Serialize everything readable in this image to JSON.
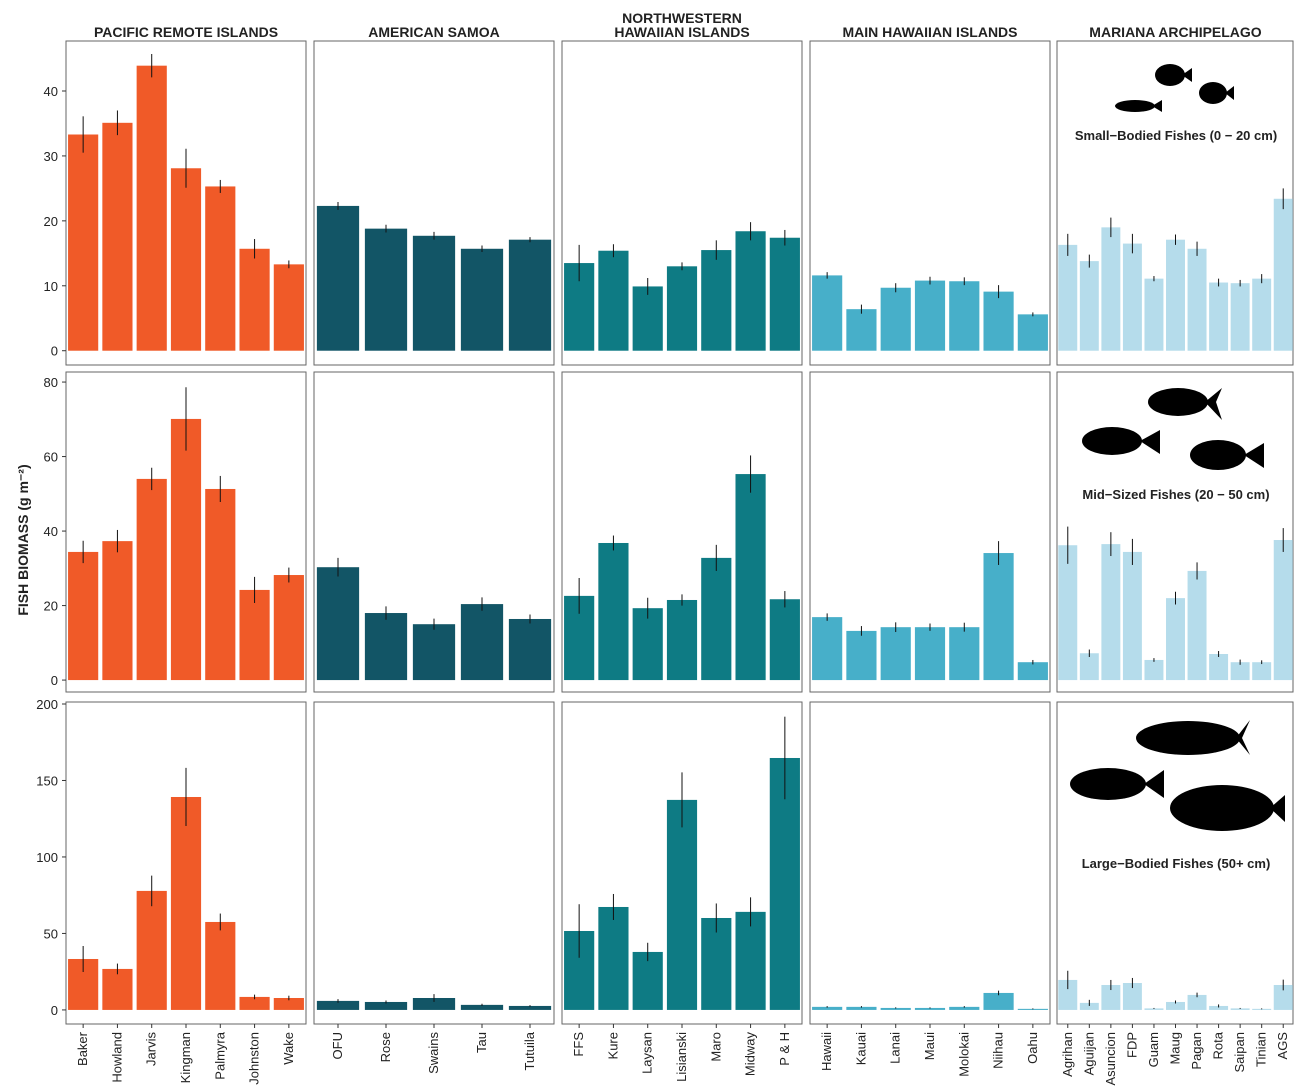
{
  "chart_data": {
    "type": "bar",
    "y_label": "FISH BIOMASS (g m⁻²)",
    "columns": [
      {
        "title": [
          "PACIFIC REMOTE ISLANDS"
        ],
        "color": "#f05a28",
        "categories": [
          "Baker",
          "Howland",
          "Jarvis",
          "Kingman",
          "Palmyra",
          "Johnston",
          "Wake"
        ]
      },
      {
        "title": [
          "AMERICAN SAMOA"
        ],
        "color": "#125566",
        "categories": [
          "OFU",
          "Rose",
          "Swains",
          "Tau",
          "Tutuila"
        ]
      },
      {
        "title": [
          "NORTHWESTERN",
          "HAWAIIAN ISLANDS"
        ],
        "color": "#0e7b84",
        "categories": [
          "FFS",
          "Kure",
          "Laysan",
          "Lisianski",
          "Maro",
          "Midway",
          "P & H"
        ]
      },
      {
        "title": [
          "MAIN HAWAIIAN ISLANDS"
        ],
        "color": "#47afc9",
        "categories": [
          "Hawaii",
          "Kauai",
          "Lanai",
          "Maui",
          "Molokai",
          "Niihau",
          "Oahu"
        ]
      },
      {
        "title": [
          "MARIANA ARCHIPELAGO"
        ],
        "color": "#b5dceb",
        "categories": [
          "Agrihan",
          "Aguijan",
          "Asuncion",
          "FDP",
          "Guam",
          "Maug",
          "Pagan",
          "Rota",
          "Saipan",
          "Tinian",
          "AGS"
        ]
      }
    ],
    "rows": [
      {
        "annotation": "Small−Bodied Fishes (0 − 20 cm)",
        "ylim": [
          -2.2,
          47.7
        ],
        "yticks": [
          0,
          10,
          20,
          30,
          40
        ],
        "values": [
          [
            33.3,
            35.1,
            43.9,
            28.1,
            25.3,
            15.7,
            13.3
          ],
          [
            22.3,
            18.8,
            17.7,
            15.7,
            17.1
          ],
          [
            13.5,
            15.4,
            9.9,
            13.0,
            15.5,
            18.4,
            17.4
          ],
          [
            11.6,
            6.4,
            9.7,
            10.8,
            10.7,
            9.1,
            5.6
          ],
          [
            16.3,
            13.8,
            19.0,
            16.5,
            11.1,
            17.1,
            15.7,
            10.5,
            10.4,
            11.1,
            23.4
          ]
        ],
        "errors": [
          [
            2.8,
            1.9,
            1.8,
            3.0,
            1.0,
            1.5,
            0.6
          ],
          [
            0.6,
            0.6,
            0.6,
            0.5,
            0.4
          ],
          [
            2.8,
            1.0,
            1.3,
            0.6,
            1.5,
            1.4,
            1.2
          ],
          [
            0.5,
            0.7,
            0.7,
            0.6,
            0.6,
            1.0,
            0.3
          ],
          [
            1.7,
            1.0,
            1.5,
            1.5,
            0.4,
            0.8,
            1.1,
            0.6,
            0.5,
            0.7,
            1.6
          ]
        ]
      },
      {
        "annotation": "Mid−Sized Fishes (20 − 50 cm)",
        "ylim": [
          -3.2,
          82.7
        ],
        "yticks": [
          0,
          20,
          40,
          60,
          80
        ],
        "values": [
          [
            34.4,
            37.3,
            54.0,
            70.1,
            51.3,
            24.2,
            28.2
          ],
          [
            30.3,
            18.0,
            15.0,
            20.4,
            16.4
          ],
          [
            22.6,
            36.8,
            19.3,
            21.5,
            32.8,
            55.3,
            21.7
          ],
          [
            16.9,
            13.2,
            14.2,
            14.2,
            14.2,
            34.1,
            4.8
          ],
          [
            36.2,
            7.2,
            36.5,
            34.4,
            5.4,
            22.0,
            29.3,
            7.0,
            4.8,
            4.8,
            37.6
          ]
        ],
        "errors": [
          [
            3.0,
            3.0,
            3.0,
            8.5,
            3.5,
            3.5,
            2.0
          ],
          [
            2.5,
            1.8,
            1.5,
            1.8,
            1.2
          ],
          [
            4.8,
            2.0,
            2.8,
            1.5,
            3.5,
            5.0,
            2.2
          ],
          [
            1.0,
            1.3,
            1.3,
            1.0,
            1.2,
            3.2,
            0.6
          ],
          [
            5.0,
            1.0,
            3.2,
            3.5,
            0.5,
            1.7,
            2.3,
            0.8,
            0.7,
            0.5,
            3.2
          ]
        ]
      },
      {
        "annotation": "Large−Bodied Fishes (50+ cm)",
        "ylim": [
          -9.2,
          201.3
        ],
        "yticks": [
          0,
          50,
          100,
          150,
          200
        ],
        "values": [
          [
            33.3,
            26.8,
            77.8,
            139.2,
            57.5,
            8.5,
            7.8
          ],
          [
            5.9,
            5.2,
            7.8,
            3.3,
            2.6
          ],
          [
            51.6,
            67.3,
            37.9,
            137.3,
            60.1,
            64.1,
            164.7
          ],
          [
            2.0,
            2.0,
            1.3,
            1.3,
            2.0,
            11.1,
            0.7
          ],
          [
            19.6,
            4.6,
            16.3,
            17.6,
            1.0,
            5.2,
            9.8,
            2.6,
            1.0,
            0.7,
            16.3
          ]
        ],
        "errors": [
          [
            8.5,
            3.5,
            10.0,
            19.0,
            5.5,
            1.5,
            1.5
          ],
          [
            1.2,
            1.0,
            2.5,
            0.7,
            0.5
          ],
          [
            17.5,
            8.5,
            6.0,
            18.0,
            9.5,
            9.5,
            27.0
          ],
          [
            0.5,
            0.5,
            0.4,
            0.4,
            0.5,
            1.5,
            0.3
          ],
          [
            6.0,
            2.0,
            3.3,
            3.3,
            0.3,
            1.0,
            1.5,
            1.0,
            0.3,
            0.3,
            3.5
          ]
        ]
      }
    ]
  }
}
